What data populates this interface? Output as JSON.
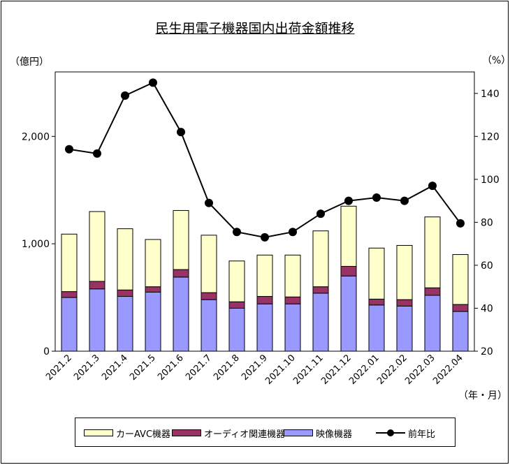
{
  "chart_data": {
    "type": "bar",
    "subtype": "stacked-bar-with-line",
    "title": "民生用電子機器国内出荷金額推移",
    "ylabel": "（億円）",
    "y2label": "（%）",
    "xlabel": "（年・月）",
    "ylim": [
      0,
      2600
    ],
    "yticks": [
      0,
      1000,
      2000
    ],
    "ytick_labels": [
      "0",
      "1,000",
      "2,000"
    ],
    "y2lim": [
      20,
      150
    ],
    "y2ticks": [
      20,
      40,
      60,
      80,
      100,
      120,
      140
    ],
    "y2tick_labels": [
      "20",
      "40",
      "60",
      "80",
      "100",
      "120",
      "140"
    ],
    "categories": [
      "2021.2",
      "2021.3",
      "2021.4",
      "2021.5",
      "2021.6",
      "2021.7",
      "2021.8",
      "2021.9",
      "2021.10",
      "2021.11",
      "2021.12",
      "2022.01",
      "2022.02",
      "2022.03",
      "2022.04"
    ],
    "series": [
      {
        "name": "映像機器",
        "axis": "left",
        "color": "#9999ff",
        "values": [
          500,
          580,
          510,
          550,
          690,
          480,
          400,
          440,
          440,
          540,
          700,
          430,
          420,
          520,
          370
        ]
      },
      {
        "name": "オーディオ関連機器",
        "axis": "left",
        "color": "#993366",
        "values": [
          55,
          70,
          60,
          50,
          70,
          65,
          60,
          70,
          65,
          60,
          90,
          55,
          60,
          70,
          65
        ]
      },
      {
        "name": "カーAVC機器",
        "axis": "left",
        "color": "#ffffcc",
        "values": [
          535,
          650,
          570,
          440,
          550,
          535,
          380,
          385,
          390,
          520,
          560,
          475,
          505,
          660,
          465
        ]
      },
      {
        "name": "前年比",
        "axis": "right",
        "type": "line",
        "color": "#000000",
        "values": [
          114,
          112,
          139,
          145,
          122,
          89,
          75.5,
          73,
          75.5,
          84,
          90,
          91.5,
          90,
          97,
          79.5
        ]
      }
    ],
    "legend": {
      "position": "bottom",
      "order": [
        "カーAVC機器",
        "オーディオ関連機器",
        "映像機器",
        "前年比"
      ]
    },
    "grid": false
  }
}
